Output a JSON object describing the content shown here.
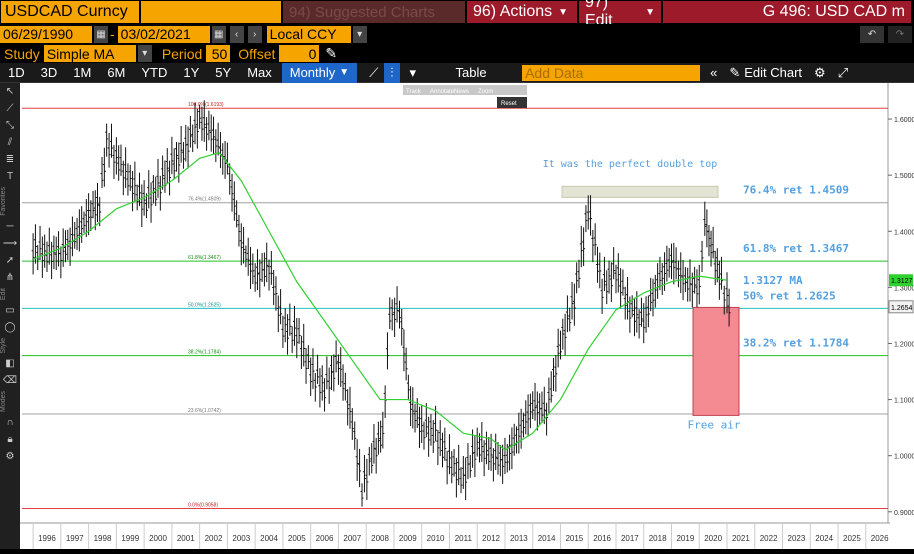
{
  "header": {
    "security": "USDCAD Curncy",
    "suggested": "94) Suggested Charts",
    "actions": "96) Actions",
    "edit": "97) Edit",
    "title": "G 496: USD CAD m"
  },
  "dates": {
    "start": "06/29/1990",
    "end": "03/02/2021",
    "currency": "Local CCY"
  },
  "study": {
    "label": "Study",
    "value": "Simple MA",
    "period_label": "Period",
    "period": "50",
    "offset_label": "Offset",
    "offset": "0"
  },
  "ranges": [
    "1D",
    "3D",
    "1M",
    "6M",
    "YTD",
    "1Y",
    "5Y",
    "Max"
  ],
  "frequency": "Monthly",
  "table_label": "Table",
  "add_data_placeholder": "Add Data",
  "edit_chart_label": "Edit Chart",
  "mini_toolbar": [
    "Track",
    "Annotate",
    "News",
    "Zoom",
    "Reset"
  ],
  "side_labels": [
    "Favorites",
    "Edit",
    "Style",
    "Modes"
  ],
  "chart_data": {
    "type": "line",
    "x_labels": [
      "1996",
      "1997",
      "1998",
      "1999",
      "2000",
      "2001",
      "2002",
      "2003",
      "2004",
      "2005",
      "2006",
      "2007",
      "2008",
      "2009",
      "2010",
      "2011",
      "2012",
      "2013",
      "2014",
      "2015",
      "2016",
      "2017",
      "2018",
      "2019",
      "2020",
      "2021",
      "2022",
      "2023",
      "2024",
      "2025",
      "2026"
    ],
    "y_ticks": [
      "1.6000",
      "1.5000",
      "1.4000",
      "1.3000",
      "1.2000",
      "1.1000",
      "1.0000",
      "0.9000"
    ],
    "ylim": [
      0.88,
      1.65
    ],
    "last_price": "1.2654",
    "ma_value": "1.3127",
    "fib_levels": [
      {
        "name": "100.0%(1.6193)",
        "value": 1.6193,
        "color": "#e04040",
        "right_label": ""
      },
      {
        "name": "76.4%(1.4509)",
        "value": 1.4509,
        "color": "#a0a0a0",
        "right_label": "76.4% ret 1.4509"
      },
      {
        "name": "61.8%(1.3467)",
        "value": 1.3467,
        "color": "#20c020",
        "right_label": "61.8% ret 1.3467"
      },
      {
        "name": "50.0%(1.2625)",
        "value": 1.2625,
        "color": "#20c0c0",
        "right_label": "50% ret 1.2625"
      },
      {
        "name": "38.2%(1.1784)",
        "value": 1.1784,
        "color": "#20c020",
        "right_label": "38.2% ret 1.1784"
      },
      {
        "name": "23.6%(1.0742)",
        "value": 1.0742,
        "color": "#a0a0a0",
        "right_label": ""
      },
      {
        "name": "0.0%(0.9058)",
        "value": 0.9058,
        "color": "#e04040",
        "right_label": ""
      }
    ],
    "ma_label": "1.3127 MA",
    "annotation_top": "It was the perfect double top",
    "annotation_bottom": "Free air",
    "price_series": [
      [
        1996.0,
        1.37
      ],
      [
        1996.5,
        1.36
      ],
      [
        1997.0,
        1.36
      ],
      [
        1997.5,
        1.39
      ],
      [
        1998.0,
        1.43
      ],
      [
        1998.4,
        1.45
      ],
      [
        1998.65,
        1.56
      ],
      [
        1999.0,
        1.53
      ],
      [
        1999.5,
        1.49
      ],
      [
        2000.0,
        1.45
      ],
      [
        2000.5,
        1.48
      ],
      [
        2001.0,
        1.52
      ],
      [
        2001.5,
        1.55
      ],
      [
        2002.0,
        1.6
      ],
      [
        2002.5,
        1.57
      ],
      [
        2003.0,
        1.52
      ],
      [
        2003.5,
        1.38
      ],
      [
        2004.0,
        1.32
      ],
      [
        2004.5,
        1.34
      ],
      [
        2005.0,
        1.23
      ],
      [
        2005.5,
        1.22
      ],
      [
        2006.0,
        1.15
      ],
      [
        2006.5,
        1.12
      ],
      [
        2007.0,
        1.17
      ],
      [
        2007.5,
        1.06
      ],
      [
        2007.85,
        0.94
      ],
      [
        2008.2,
        1.0
      ],
      [
        2008.6,
        1.04
      ],
      [
        2008.85,
        1.25
      ],
      [
        2009.2,
        1.26
      ],
      [
        2009.6,
        1.09
      ],
      [
        2010.0,
        1.05
      ],
      [
        2010.5,
        1.04
      ],
      [
        2011.0,
        0.99
      ],
      [
        2011.5,
        0.96
      ],
      [
        2012.0,
        1.02
      ],
      [
        2012.5,
        1.0
      ],
      [
        2013.0,
        0.99
      ],
      [
        2013.5,
        1.04
      ],
      [
        2014.0,
        1.09
      ],
      [
        2014.5,
        1.08
      ],
      [
        2015.0,
        1.2
      ],
      [
        2015.5,
        1.28
      ],
      [
        2016.0,
        1.44
      ],
      [
        2016.5,
        1.3
      ],
      [
        2017.0,
        1.33
      ],
      [
        2017.5,
        1.26
      ],
      [
        2018.0,
        1.24
      ],
      [
        2018.5,
        1.31
      ],
      [
        2019.0,
        1.35
      ],
      [
        2019.5,
        1.31
      ],
      [
        2020.0,
        1.3
      ],
      [
        2020.2,
        1.42
      ],
      [
        2020.5,
        1.36
      ],
      [
        2020.8,
        1.31
      ],
      [
        2021.0,
        1.28
      ],
      [
        2021.15,
        1.2654
      ]
    ],
    "ma_series": [
      [
        1996.0,
        1.35
      ],
      [
        1997.0,
        1.37
      ],
      [
        1998.0,
        1.4
      ],
      [
        1999.0,
        1.44
      ],
      [
        2000.0,
        1.46
      ],
      [
        2001.0,
        1.49
      ],
      [
        2002.0,
        1.53
      ],
      [
        2002.7,
        1.54
      ],
      [
        2003.5,
        1.49
      ],
      [
        2004.5,
        1.4
      ],
      [
        2005.5,
        1.31
      ],
      [
        2006.5,
        1.24
      ],
      [
        2007.5,
        1.17
      ],
      [
        2008.5,
        1.1
      ],
      [
        2009.5,
        1.1
      ],
      [
        2010.5,
        1.08
      ],
      [
        2011.5,
        1.04
      ],
      [
        2012.5,
        1.03
      ],
      [
        2013.0,
        1.01
      ],
      [
        2014.0,
        1.04
      ],
      [
        2015.0,
        1.1
      ],
      [
        2016.0,
        1.19
      ],
      [
        2017.0,
        1.26
      ],
      [
        2018.0,
        1.29
      ],
      [
        2019.0,
        1.31
      ],
      [
        2020.0,
        1.32
      ],
      [
        2021.0,
        1.3127
      ]
    ]
  },
  "colors": {
    "accent": "#f5a400",
    "active": "#1e66c8",
    "red_box": "#9c1a2a"
  }
}
